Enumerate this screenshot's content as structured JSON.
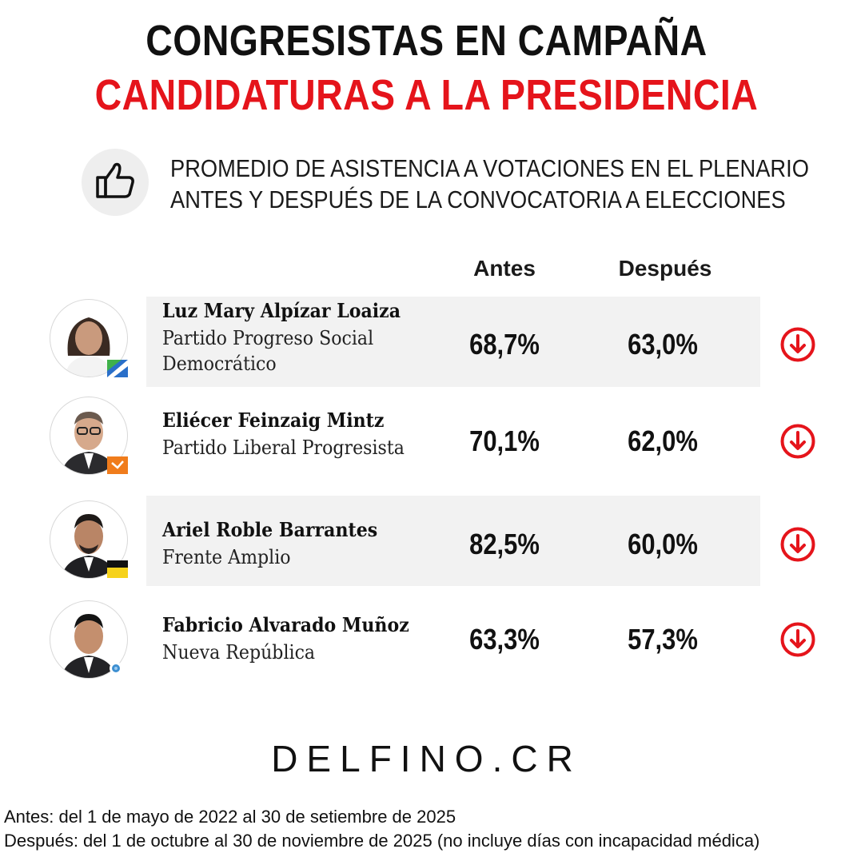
{
  "header": {
    "title_line1": "CONGRESISTAS EN CAMPAÑA",
    "title_line2": "CANDIDATURAS A LA PRESIDENCIA",
    "icon": "thumbs-up-icon",
    "subtitle_line1": "PROMEDIO DE ASISTENCIA A VOTACIONES EN EL PLENARIO",
    "subtitle_line2": "ANTES Y DESPUÉS DE LA CONVOCATORIA A ELECCIONES"
  },
  "colors": {
    "title_accent": "#e5141b",
    "down_arrow": "#e5141b",
    "row_shade": "#f2f2f2"
  },
  "chart_data": {
    "type": "table",
    "columns": [
      "Antes",
      "Después"
    ],
    "rows": [
      {
        "name": "Luz Mary Alpízar Loaiza",
        "party_line1": "Partido Progreso Social",
        "party_line2": "Democrático",
        "antes": 68.7,
        "despues": 63.0,
        "antes_label": "68,7%",
        "despues_label": "63,0%",
        "trend": "down",
        "trend_icon": "arrow-down-circle-icon"
      },
      {
        "name": "Eliécer Feinzaig Mintz",
        "party_line1": "Partido Liberal Progresista",
        "party_line2": "",
        "antes": 70.1,
        "despues": 62.0,
        "antes_label": "70,1%",
        "despues_label": "62,0%",
        "trend": "down",
        "trend_icon": "arrow-down-circle-icon"
      },
      {
        "name": "Ariel Roble Barrantes",
        "party_line1": "Frente Amplio",
        "party_line2": "",
        "antes": 82.5,
        "despues": 60.0,
        "antes_label": "82,5%",
        "despues_label": "60,0%",
        "trend": "down",
        "trend_icon": "arrow-down-circle-icon"
      },
      {
        "name": "Fabricio Alvarado Muñoz",
        "party_line1": "Nueva República",
        "party_line2": "",
        "antes": 63.3,
        "despues": 57.3,
        "antes_label": "63,3%",
        "despues_label": "57,3%",
        "trend": "down",
        "trend_icon": "arrow-down-circle-icon"
      }
    ]
  },
  "footer": {
    "brand": "DELFINO.CR",
    "note_line1": "Antes: del 1 de mayo de 2022 al 30 de setiembre de 2025",
    "note_line2": "Después: del 1 de octubre al 30 de noviembre de 2025 (no incluye días con incapacidad médica)"
  }
}
